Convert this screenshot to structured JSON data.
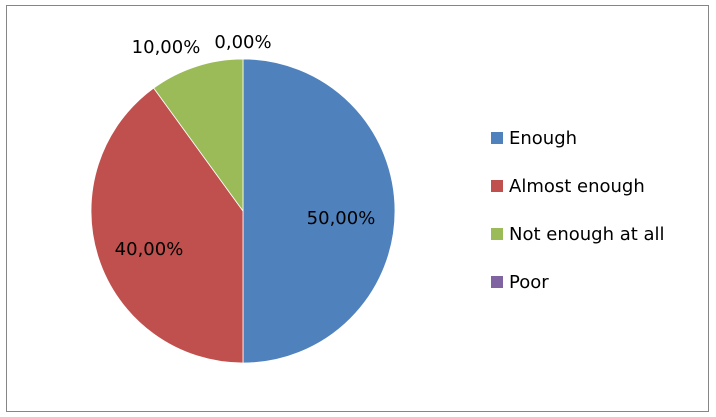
{
  "chart_data": {
    "type": "pie",
    "categories": [
      "Enough",
      "Almost enough",
      "Not enough at all",
      "Poor"
    ],
    "values": [
      50,
      40,
      10,
      0
    ],
    "data_labels": [
      "50,00%",
      "40,00%",
      "10,00%",
      "0,00%"
    ],
    "colors": [
      "#4f81bd",
      "#c0504d",
      "#9bbb59",
      "#8064a2"
    ],
    "legend_position": "right",
    "title": ""
  }
}
